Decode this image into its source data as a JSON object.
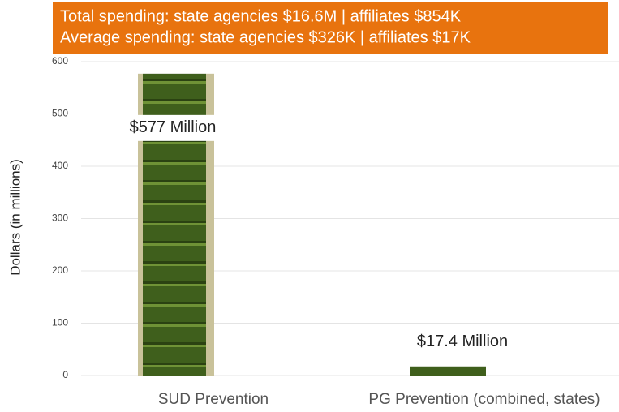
{
  "chart_data": {
    "type": "bar",
    "title_lines": [
      "Total spending: state agencies $16.6M | affiliates $854K",
      "Average spending:  state agencies $326K | affiliates $17K"
    ],
    "y_label": "Dollars (in millions)",
    "categories": [
      "SUD Prevention",
      "PG Prevention (combined, states)"
    ],
    "values": [
      577,
      17.4
    ],
    "value_labels": [
      "$577 Million",
      "$17.4 Million"
    ],
    "color": "#3f5f1c",
    "ylim": [
      0,
      600
    ],
    "yticks": [
      0,
      100,
      200,
      300,
      400,
      500,
      600
    ],
    "grid": true
  }
}
